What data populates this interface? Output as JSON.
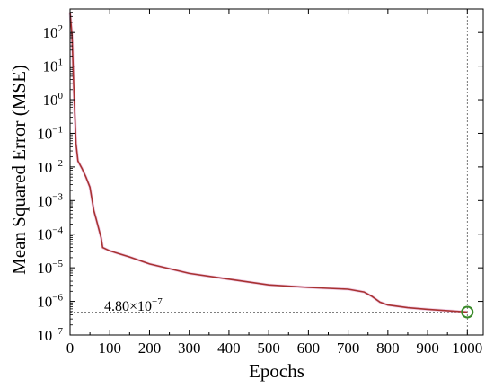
{
  "chart_data": {
    "type": "line",
    "xlabel": "Epochs",
    "ylabel": "Mean Squared Error (MSE)",
    "xlim": [
      0,
      1040
    ],
    "ylim_log10": [
      -7,
      2.7
    ],
    "yscale": "log",
    "grid": false,
    "x_ticks": [
      0,
      100,
      200,
      300,
      400,
      500,
      600,
      700,
      800,
      900,
      1000
    ],
    "x_tick_labels": [
      "0",
      "100",
      "200",
      "300",
      "400",
      "500",
      "600",
      "700",
      "800",
      "900",
      "1000"
    ],
    "y_ticks_exp": [
      -7,
      -6,
      -5,
      -4,
      -3,
      -2,
      -1,
      0,
      1,
      2
    ],
    "y_tick_labels": [
      {
        "base": "10",
        "exp": "−7"
      },
      {
        "base": "10",
        "exp": "−6"
      },
      {
        "base": "10",
        "exp": "−5"
      },
      {
        "base": "10",
        "exp": "−4"
      },
      {
        "base": "10",
        "exp": "−3"
      },
      {
        "base": "10",
        "exp": "−2"
      },
      {
        "base": "10",
        "exp": "−1"
      },
      {
        "base": "10",
        "exp": "0"
      },
      {
        "base": "10",
        "exp": "1"
      },
      {
        "base": "10",
        "exp": "2"
      }
    ],
    "series": [
      {
        "color": "#a83232",
        "x": [
          0,
          5,
          10,
          15,
          20,
          30,
          40,
          50,
          60,
          65,
          70,
          78,
          82,
          100,
          150,
          200,
          300,
          400,
          500,
          600,
          700,
          740,
          760,
          780,
          800,
          850,
          900,
          950,
          1000
        ],
        "y": [
          400,
          80,
          1.5,
          0.05,
          0.015,
          0.009,
          0.005,
          0.0025,
          0.0005,
          0.0003,
          0.00018,
          8e-05,
          4e-05,
          3.2e-05,
          2.1e-05,
          1.3e-05,
          6.8e-06,
          4.6e-06,
          3.1e-06,
          2.6e-06,
          2.3e-06,
          1.9e-06,
          1.4e-06,
          9.5e-07,
          7.8e-07,
          6.5e-07,
          5.8e-07,
          5.3e-07,
          4.8e-07
        ]
      }
    ],
    "reference_lines": {
      "x": 1000,
      "y": 4.8e-07
    },
    "final_point": {
      "x": 1000,
      "y": 4.8e-07,
      "marker_color": "#3a8a2a"
    },
    "annotation": {
      "base": "4.80×10",
      "exp": "−7"
    }
  }
}
